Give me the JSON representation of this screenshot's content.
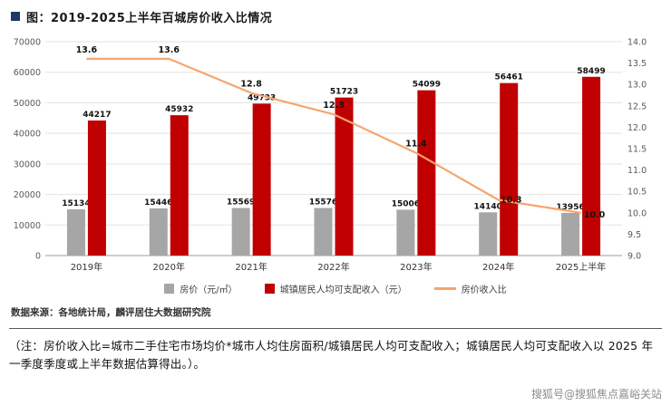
{
  "title": "图：2019-2025上半年百城房价收入比情况",
  "chart_data": {
    "type": "bar",
    "subtype": "bar+line-combo",
    "categories": [
      "2019年",
      "2020年",
      "2021年",
      "2022年",
      "2023年",
      "2024年",
      "2025上半年"
    ],
    "series": [
      {
        "name": "房价（元/㎡）",
        "type": "bar",
        "axis": "left",
        "color": "#a6a6a6",
        "values": [
          15134,
          15446,
          15569,
          15576,
          15006,
          14140,
          13956
        ]
      },
      {
        "name": "城镇居民人均可支配收入（元）",
        "type": "bar",
        "axis": "left",
        "color": "#c00000",
        "values": [
          44217,
          45932,
          49733,
          51723,
          54099,
          56461,
          58499
        ]
      },
      {
        "name": "房价收入比",
        "type": "line",
        "axis": "right",
        "color": "#f5a56e",
        "values": [
          13.6,
          13.6,
          12.8,
          12.3,
          11.4,
          10.3,
          10.0
        ]
      }
    ],
    "left_axis": {
      "min": 0,
      "max": 70000,
      "step": 10000
    },
    "right_axis": {
      "min": 9.0,
      "max": 14.0,
      "step": 0.5
    },
    "grid": true,
    "legend_position": "bottom"
  },
  "source": "数据来源：各地统计局，麟评居住大数据研究院",
  "note": "（注：房价收入比=城市二手住宅市场均价*城市人均住房面积/城镇居民人均可支配收入；城镇居民人均可支配收入以 2025 年一季度季度或上半年数据估算得出。）。",
  "watermark": "搜狐号@搜狐焦点嘉峪关站"
}
